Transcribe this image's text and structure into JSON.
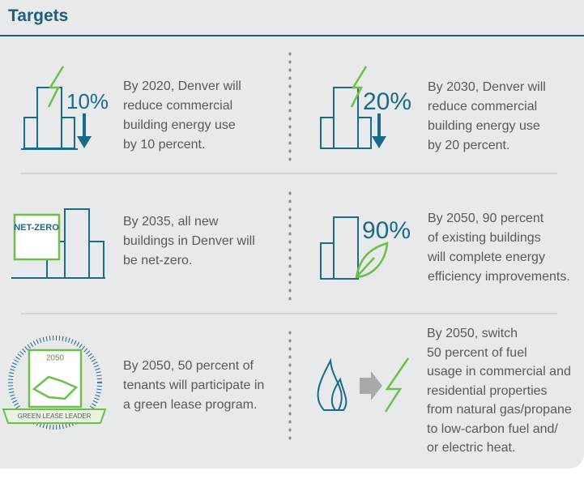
{
  "title": "Targets",
  "targets": [
    {
      "icon_labels": [
        "10%"
      ],
      "text": [
        "By 2020, Denver will",
        "reduce commercial",
        "building energy use",
        "by 10 percent."
      ]
    },
    {
      "icon_labels": [
        "20%"
      ],
      "text": [
        "By 2030, Denver will",
        "reduce commercial",
        "building energy use",
        "by 20 percent."
      ]
    },
    {
      "icon_labels": [
        "NET-ZERO"
      ],
      "text": [
        "By 2035, all new",
        "buildings in Denver will",
        "be net-zero."
      ]
    },
    {
      "icon_labels": [
        "90%"
      ],
      "text": [
        "By 2050, 90 percent",
        "of existing buildings",
        "will complete energy",
        "efficiency improvements."
      ]
    },
    {
      "icon_labels": [
        "2050",
        "GREEN LEASE LEADER"
      ],
      "text": [
        "By 2050, 50 percent of",
        "tenants will participate in",
        "a green lease program."
      ]
    },
    {
      "text": [
        "By 2050, switch",
        "50 percent of fuel",
        "usage in commercial and",
        "residential properties",
        "from natural gas/propane",
        "to low-carbon fuel and/",
        "or electric heat."
      ]
    }
  ]
}
